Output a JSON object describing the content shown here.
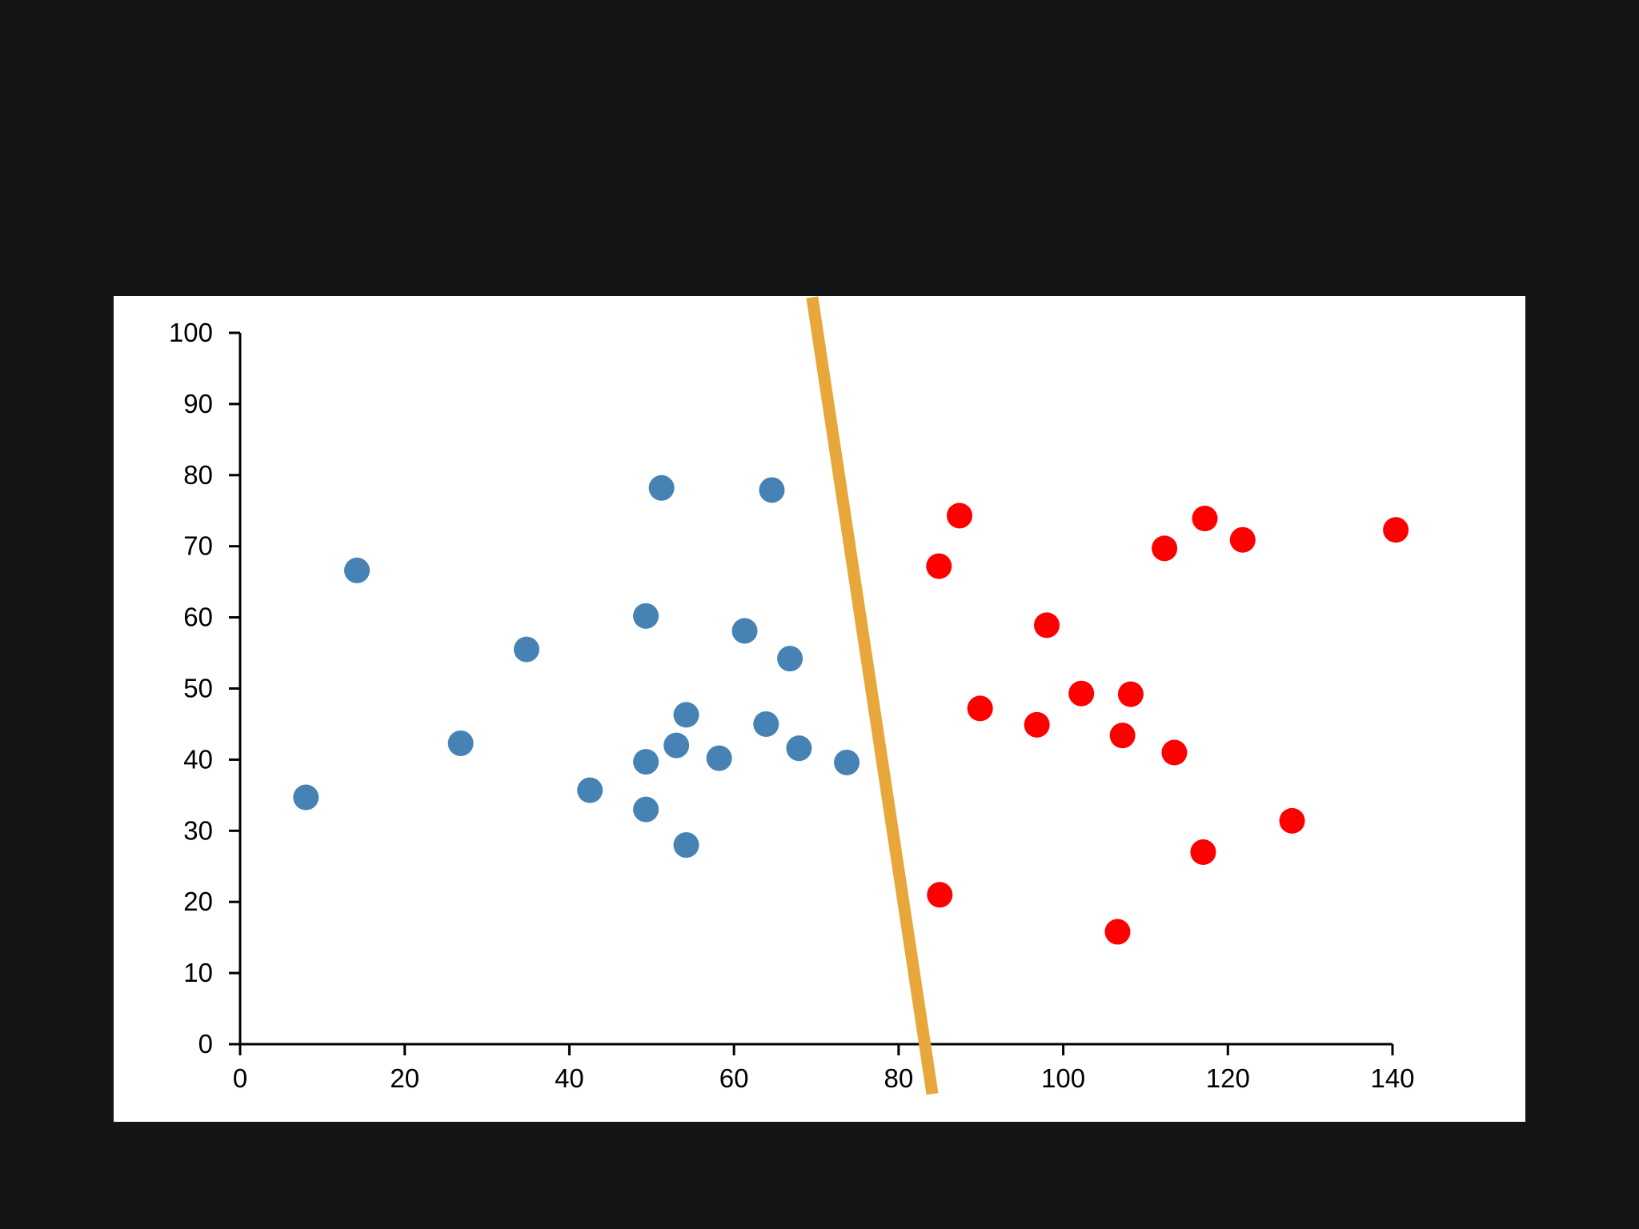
{
  "chart_data": {
    "type": "scatter",
    "title": "",
    "xlabel": "",
    "ylabel": "",
    "xlim": [
      0,
      140
    ],
    "ylim": [
      0,
      100
    ],
    "x_ticks": [
      0,
      20,
      40,
      60,
      80,
      100,
      120,
      140
    ],
    "y_ticks": [
      0,
      10,
      20,
      30,
      40,
      50,
      60,
      70,
      80,
      90,
      100
    ],
    "grid": false,
    "legend": "none",
    "series": [
      {
        "color": "#4682B4",
        "points": [
          [
            8,
            34.7
          ],
          [
            14.2,
            66.6
          ],
          [
            26.8,
            42.3
          ],
          [
            34.8,
            55.5
          ],
          [
            42.5,
            35.7
          ],
          [
            49.3,
            33
          ],
          [
            49.3,
            39.7
          ],
          [
            49.3,
            60.2
          ],
          [
            51.2,
            78.2
          ],
          [
            53,
            42
          ],
          [
            54.2,
            46.3
          ],
          [
            54.2,
            28
          ],
          [
            58.2,
            40.2
          ],
          [
            61.3,
            58.1
          ],
          [
            63.9,
            45
          ],
          [
            64.6,
            77.9
          ],
          [
            66.8,
            54.2
          ],
          [
            67.9,
            41.6
          ],
          [
            73.7,
            39.6
          ]
        ]
      },
      {
        "color": "#FF0000",
        "points": [
          [
            84.9,
            67.2
          ],
          [
            85,
            21
          ],
          [
            87.4,
            74.3
          ],
          [
            89.9,
            47.2
          ],
          [
            96.8,
            44.9
          ],
          [
            98,
            58.9
          ],
          [
            102.2,
            49.3
          ],
          [
            107.2,
            43.4
          ],
          [
            108.2,
            49.2
          ],
          [
            106.6,
            15.8
          ],
          [
            112.3,
            69.7
          ],
          [
            113.5,
            41
          ],
          [
            117.2,
            73.9
          ],
          [
            117,
            27
          ],
          [
            121.8,
            70.9
          ],
          [
            127.8,
            31.4
          ],
          [
            140.4,
            72.3
          ]
        ]
      }
    ],
    "annotations": [
      {
        "type": "line",
        "color": "#E8A73B",
        "from": [
          69.5,
          105
        ],
        "to": [
          84.1,
          -7
        ]
      }
    ]
  }
}
